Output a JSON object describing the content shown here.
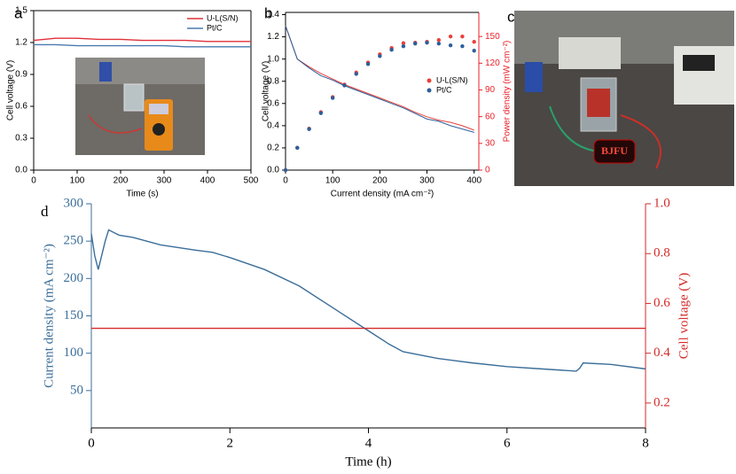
{
  "photo": {
    "panel": "c",
    "sign": "BJFU"
  },
  "chart_data": [
    {
      "type": "line",
      "panel": "a",
      "xlabel": "Time (s)",
      "ylabel": "Cell voltage (V)",
      "x": [
        0,
        50,
        100,
        150,
        200,
        250,
        300,
        350,
        400,
        450,
        500
      ],
      "xlim": [
        0,
        500
      ],
      "xticks": [
        0,
        100,
        200,
        300,
        400,
        500
      ],
      "ylim": [
        0,
        1.5
      ],
      "yticks": [
        {
          "value": 0,
          "label": "0.0"
        },
        0.3,
        0.6,
        0.9,
        1.2,
        1.5
      ],
      "legend": "upper right",
      "series": [
        {
          "name": "U-L(S/N)",
          "color": "#e0303a",
          "values": [
            1.22,
            1.24,
            1.24,
            1.23,
            1.23,
            1.22,
            1.22,
            1.22,
            1.21,
            1.21,
            1.21
          ]
        },
        {
          "name": "Pt/C",
          "color": "#4a7ab0",
          "values": [
            1.18,
            1.18,
            1.17,
            1.17,
            1.17,
            1.17,
            1.17,
            1.16,
            1.16,
            1.16,
            1.16
          ]
        }
      ]
    },
    {
      "type": "line",
      "panel": "b",
      "xlabel": "Current density (mA cm⁻²)",
      "ylabel": "Cell voltage (V)",
      "y2label": "Power density (mW cm⁻²)",
      "x": [
        0,
        25,
        50,
        75,
        100,
        125,
        150,
        175,
        200,
        225,
        250,
        275,
        300,
        325,
        350,
        375,
        400
      ],
      "xlim": [
        0,
        410
      ],
      "xticks": [
        0,
        100,
        200,
        300,
        400
      ],
      "ylim": [
        0,
        1.42
      ],
      "yticks": [
        {
          "value": 0,
          "label": "0.0"
        },
        0.2,
        0.4,
        0.6,
        0.8,
        {
          "value": 1,
          "label": "1.0"
        },
        1.2,
        1.4
      ],
      "y2lim": [
        0,
        177
      ],
      "y2ticks": [
        0,
        30,
        60,
        90,
        120,
        150
      ],
      "y2_color": "#e8212b",
      "legend": "center right",
      "series": [
        {
          "name": "U-L(S/N)",
          "color": "#e8413c",
          "values": [
            1.3,
            1.0,
            0.93,
            0.87,
            0.82,
            0.77,
            0.73,
            0.69,
            0.65,
            0.61,
            0.57,
            0.52,
            0.48,
            0.45,
            0.43,
            0.4,
            0.36
          ],
          "y2values": [
            0,
            25,
            46.5,
            65,
            82,
            96,
            109.5,
            120.75,
            130,
            137,
            142.5,
            143,
            144,
            146,
            150,
            150,
            144
          ]
        },
        {
          "name": "Pt/C",
          "color": "#2d5f9a",
          "values": [
            1.3,
            1.0,
            0.92,
            0.85,
            0.81,
            0.76,
            0.72,
            0.68,
            0.64,
            0.6,
            0.56,
            0.51,
            0.46,
            0.44,
            0.4,
            0.37,
            0.34
          ],
          "y2values": [
            0,
            25,
            46,
            64,
            81,
            95,
            108,
            119,
            128,
            135,
            139,
            142,
            143,
            142,
            140,
            139,
            134
          ]
        }
      ]
    },
    {
      "type": "line",
      "panel": "d",
      "xlabel": "Time (h)",
      "ylabel": "Current density (mA cm⁻²)",
      "y2label": "Cell voltage (V)",
      "xlim": [
        0,
        8
      ],
      "xticks": [
        0,
        2,
        4,
        6,
        8
      ],
      "ylim": [
        0,
        300
      ],
      "yticks": [
        50,
        100,
        150,
        200,
        250,
        300
      ],
      "y2lim": [
        0.1,
        1.0
      ],
      "y2ticks": [
        0.2,
        0.4,
        0.6,
        0.8,
        {
          "value": 1,
          "label": "1.0"
        }
      ],
      "y_color": "#3b6e99",
      "y2_color": "#d42a2a",
      "series": [
        {
          "color": "#3b6e99",
          "x": [
            0,
            0.05,
            0.1,
            0.2,
            0.25,
            0.4,
            0.6,
            1,
            1.5,
            1.75,
            2,
            2.5,
            3,
            3.5,
            4,
            4.3,
            4.5,
            5,
            5.5,
            6,
            6.5,
            7,
            7.05,
            7.1,
            7.5,
            8
          ],
          "values": [
            260,
            230,
            212,
            250,
            265,
            258,
            255,
            245,
            238,
            235,
            228,
            212,
            190,
            160,
            130,
            112,
            102,
            93,
            87,
            82,
            79,
            76,
            80,
            87,
            85,
            79
          ]
        },
        {
          "color": "#d42a2a",
          "axis": "y2",
          "x": [
            0,
            8
          ],
          "values": [
            0.5,
            0.5
          ]
        }
      ]
    }
  ]
}
